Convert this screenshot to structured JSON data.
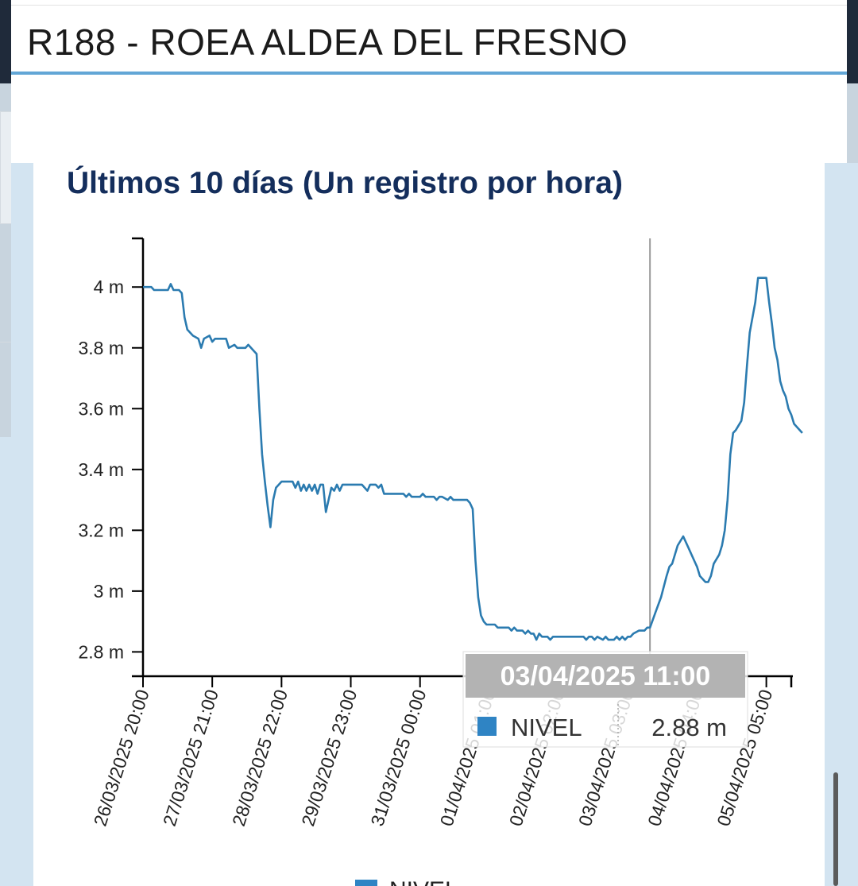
{
  "header": {
    "title": "R188 - ROEA ALDEA DEL FRESNO"
  },
  "colors": {
    "line": "#2b7bb0",
    "accent_bar": "#62a6d6",
    "title": "#142e5c",
    "legend_marker": "#2f84c4"
  },
  "tooltip": {
    "date": "03/04/2025 11:00",
    "series": "NIVEL",
    "value": "2.88 m"
  },
  "legend": {
    "label": "NIVEL"
  },
  "chart_data": {
    "type": "line",
    "title": "Últimos 10 días (Un registro por hora)",
    "xlabel": "",
    "ylabel": "",
    "y_unit": "m",
    "ylim": [
      2.72,
      4.16
    ],
    "xlim": [
      "26/03/2025 20:00",
      "05/04/2025 14:00"
    ],
    "grid": false,
    "legend_position": "bottom",
    "y_ticks": [
      "2.8 m",
      "3 m",
      "3.2 m",
      "3.4 m",
      "3.6 m",
      "3.8 m",
      "4 m"
    ],
    "y_tick_values": [
      2.8,
      3.0,
      3.2,
      3.4,
      3.6,
      3.8,
      4.0
    ],
    "x_ticks": [
      "26/03/2025 20:00",
      "27/03/2025 21:00",
      "28/03/2025 22:00",
      "29/03/2025 23:00",
      "31/03/2025 00:00",
      "01/04/2025 01:00",
      "02/04/2025 02:00",
      "03/04/2025 03:00",
      "04/04/2025 04:00",
      "05/04/2025 05:00"
    ],
    "x_tick_times": [
      "2025-03-26T20:00",
      "2025-03-27T21:00",
      "2025-03-28T22:00",
      "2025-03-29T23:00",
      "2025-03-31T00:00",
      "2025-04-01T01:00",
      "2025-04-02T02:00",
      "2025-04-03T03:00",
      "2025-04-04T04:00",
      "2025-04-05T05:00"
    ],
    "crosshair_time": "2025-04-03T11:00",
    "series": [
      {
        "name": "NIVEL",
        "points": [
          [
            "2025-03-26T20:00",
            4.0
          ],
          [
            "2025-03-26T23:00",
            4.0
          ],
          [
            "2025-03-27T00:00",
            3.99
          ],
          [
            "2025-03-27T03:00",
            3.99
          ],
          [
            "2025-03-27T05:00",
            3.99
          ],
          [
            "2025-03-27T06:00",
            4.01
          ],
          [
            "2025-03-27T07:00",
            3.99
          ],
          [
            "2025-03-27T09:00",
            3.99
          ],
          [
            "2025-03-27T10:00",
            3.98
          ],
          [
            "2025-03-27T11:00",
            3.9
          ],
          [
            "2025-03-27T12:00",
            3.86
          ],
          [
            "2025-03-27T14:00",
            3.84
          ],
          [
            "2025-03-27T16:00",
            3.83
          ],
          [
            "2025-03-27T17:00",
            3.8
          ],
          [
            "2025-03-27T18:00",
            3.83
          ],
          [
            "2025-03-27T20:00",
            3.84
          ],
          [
            "2025-03-27T21:00",
            3.82
          ],
          [
            "2025-03-27T22:00",
            3.83
          ],
          [
            "2025-03-28T02:00",
            3.83
          ],
          [
            "2025-03-28T03:00",
            3.8
          ],
          [
            "2025-03-28T05:00",
            3.81
          ],
          [
            "2025-03-28T06:00",
            3.8
          ],
          [
            "2025-03-28T09:00",
            3.8
          ],
          [
            "2025-03-28T10:00",
            3.81
          ],
          [
            "2025-03-28T12:00",
            3.79
          ],
          [
            "2025-03-28T13:00",
            3.78
          ],
          [
            "2025-03-28T14:00",
            3.6
          ],
          [
            "2025-03-28T15:00",
            3.45
          ],
          [
            "2025-03-28T16:00",
            3.36
          ],
          [
            "2025-03-28T17:00",
            3.28
          ],
          [
            "2025-03-28T18:00",
            3.21
          ],
          [
            "2025-03-28T19:00",
            3.3
          ],
          [
            "2025-03-28T20:00",
            3.34
          ],
          [
            "2025-03-28T22:00",
            3.36
          ],
          [
            "2025-03-29T02:00",
            3.36
          ],
          [
            "2025-03-29T03:00",
            3.34
          ],
          [
            "2025-03-29T04:00",
            3.36
          ],
          [
            "2025-03-29T05:00",
            3.33
          ],
          [
            "2025-03-29T06:00",
            3.35
          ],
          [
            "2025-03-29T07:00",
            3.33
          ],
          [
            "2025-03-29T08:00",
            3.35
          ],
          [
            "2025-03-29T09:00",
            3.33
          ],
          [
            "2025-03-29T10:00",
            3.35
          ],
          [
            "2025-03-29T11:00",
            3.32
          ],
          [
            "2025-03-29T12:00",
            3.35
          ],
          [
            "2025-03-29T13:00",
            3.35
          ],
          [
            "2025-03-29T14:00",
            3.26
          ],
          [
            "2025-03-29T15:00",
            3.3
          ],
          [
            "2025-03-29T16:00",
            3.34
          ],
          [
            "2025-03-29T17:00",
            3.33
          ],
          [
            "2025-03-29T18:00",
            3.35
          ],
          [
            "2025-03-29T19:00",
            3.33
          ],
          [
            "2025-03-29T20:00",
            3.35
          ],
          [
            "2025-03-30T03:00",
            3.35
          ],
          [
            "2025-03-30T04:00",
            3.34
          ],
          [
            "2025-03-30T05:00",
            3.33
          ],
          [
            "2025-03-30T06:00",
            3.35
          ],
          [
            "2025-03-30T08:00",
            3.35
          ],
          [
            "2025-03-30T09:00",
            3.34
          ],
          [
            "2025-03-30T10:00",
            3.35
          ],
          [
            "2025-03-30T11:00",
            3.32
          ],
          [
            "2025-03-30T12:00",
            3.32
          ],
          [
            "2025-03-30T18:00",
            3.32
          ],
          [
            "2025-03-30T19:00",
            3.31
          ],
          [
            "2025-03-30T20:00",
            3.32
          ],
          [
            "2025-03-30T21:00",
            3.31
          ],
          [
            "2025-03-30T23:00",
            3.31
          ],
          [
            "2025-03-31T00:00",
            3.31
          ],
          [
            "2025-03-31T01:00",
            3.32
          ],
          [
            "2025-03-31T02:00",
            3.31
          ],
          [
            "2025-03-31T05:00",
            3.31
          ],
          [
            "2025-03-31T06:00",
            3.3
          ],
          [
            "2025-03-31T07:00",
            3.31
          ],
          [
            "2025-03-31T08:00",
            3.31
          ],
          [
            "2025-03-31T10:00",
            3.3
          ],
          [
            "2025-03-31T11:00",
            3.31
          ],
          [
            "2025-03-31T12:00",
            3.3
          ],
          [
            "2025-03-31T17:00",
            3.3
          ],
          [
            "2025-03-31T18:00",
            3.29
          ],
          [
            "2025-03-31T19:00",
            3.27
          ],
          [
            "2025-03-31T20:00",
            3.1
          ],
          [
            "2025-03-31T21:00",
            2.98
          ],
          [
            "2025-03-31T22:00",
            2.92
          ],
          [
            "2025-03-31T23:00",
            2.9
          ],
          [
            "2025-04-01T00:00",
            2.89
          ],
          [
            "2025-04-01T02:00",
            2.89
          ],
          [
            "2025-04-01T03:00",
            2.89
          ],
          [
            "2025-04-01T04:00",
            2.88
          ],
          [
            "2025-04-01T08:00",
            2.88
          ],
          [
            "2025-04-01T09:00",
            2.87
          ],
          [
            "2025-04-01T10:00",
            2.88
          ],
          [
            "2025-04-01T11:00",
            2.87
          ],
          [
            "2025-04-01T13:00",
            2.87
          ],
          [
            "2025-04-01T14:00",
            2.86
          ],
          [
            "2025-04-01T15:00",
            2.87
          ],
          [
            "2025-04-01T16:00",
            2.86
          ],
          [
            "2025-04-01T17:00",
            2.86
          ],
          [
            "2025-04-01T18:00",
            2.84
          ],
          [
            "2025-04-01T19:00",
            2.86
          ],
          [
            "2025-04-01T20:00",
            2.85
          ],
          [
            "2025-04-01T22:00",
            2.85
          ],
          [
            "2025-04-01T23:00",
            2.84
          ],
          [
            "2025-04-02T00:00",
            2.85
          ],
          [
            "2025-04-02T11:00",
            2.85
          ],
          [
            "2025-04-02T12:00",
            2.84
          ],
          [
            "2025-04-02T13:00",
            2.85
          ],
          [
            "2025-04-02T14:00",
            2.85
          ],
          [
            "2025-04-02T15:00",
            2.84
          ],
          [
            "2025-04-02T16:00",
            2.85
          ],
          [
            "2025-04-02T18:00",
            2.84
          ],
          [
            "2025-04-02T19:00",
            2.85
          ],
          [
            "2025-04-02T20:00",
            2.84
          ],
          [
            "2025-04-02T22:00",
            2.84
          ],
          [
            "2025-04-02T23:00",
            2.85
          ],
          [
            "2025-04-03T00:00",
            2.84
          ],
          [
            "2025-04-03T01:00",
            2.85
          ],
          [
            "2025-04-03T02:00",
            2.84
          ],
          [
            "2025-04-03T03:00",
            2.85
          ],
          [
            "2025-04-03T04:00",
            2.85
          ],
          [
            "2025-04-03T05:00",
            2.86
          ],
          [
            "2025-04-03T07:00",
            2.87
          ],
          [
            "2025-04-03T09:00",
            2.87
          ],
          [
            "2025-04-03T10:00",
            2.88
          ],
          [
            "2025-04-03T11:00",
            2.88
          ],
          [
            "2025-04-03T13:00",
            2.93
          ],
          [
            "2025-04-03T15:00",
            2.98
          ],
          [
            "2025-04-03T17:00",
            3.05
          ],
          [
            "2025-04-03T18:00",
            3.08
          ],
          [
            "2025-04-03T19:00",
            3.09
          ],
          [
            "2025-04-03T21:00",
            3.15
          ],
          [
            "2025-04-03T23:00",
            3.18
          ],
          [
            "2025-04-04T01:00",
            3.14
          ],
          [
            "2025-04-04T03:00",
            3.1
          ],
          [
            "2025-04-04T04:00",
            3.08
          ],
          [
            "2025-04-04T05:00",
            3.05
          ],
          [
            "2025-04-04T07:00",
            3.03
          ],
          [
            "2025-04-04T08:00",
            3.03
          ],
          [
            "2025-04-04T09:00",
            3.05
          ],
          [
            "2025-04-04T10:00",
            3.09
          ],
          [
            "2025-04-04T12:00",
            3.12
          ],
          [
            "2025-04-04T13:00",
            3.15
          ],
          [
            "2025-04-04T14:00",
            3.2
          ],
          [
            "2025-04-04T15:00",
            3.3
          ],
          [
            "2025-04-04T16:00",
            3.45
          ],
          [
            "2025-04-04T17:00",
            3.52
          ],
          [
            "2025-04-04T18:00",
            3.53
          ],
          [
            "2025-04-04T20:00",
            3.56
          ],
          [
            "2025-04-04T21:00",
            3.62
          ],
          [
            "2025-04-04T22:00",
            3.74
          ],
          [
            "2025-04-04T23:00",
            3.85
          ],
          [
            "2025-04-05T01:00",
            3.95
          ],
          [
            "2025-04-05T02:00",
            4.03
          ],
          [
            "2025-04-05T05:00",
            4.03
          ],
          [
            "2025-04-05T06:00",
            3.95
          ],
          [
            "2025-04-05T07:00",
            3.88
          ],
          [
            "2025-04-05T08:00",
            3.8
          ],
          [
            "2025-04-05T09:00",
            3.76
          ],
          [
            "2025-04-05T10:00",
            3.69
          ],
          [
            "2025-04-05T11:00",
            3.66
          ],
          [
            "2025-04-05T12:00",
            3.64
          ],
          [
            "2025-04-05T13:00",
            3.6
          ],
          [
            "2025-04-05T14:00",
            3.58
          ],
          [
            "2025-04-05T15:00",
            3.55
          ],
          [
            "2025-04-05T16:00",
            3.54
          ],
          [
            "2025-04-05T17:00",
            3.53
          ],
          [
            "2025-04-05T18:00",
            3.52
          ]
        ]
      }
    ]
  }
}
